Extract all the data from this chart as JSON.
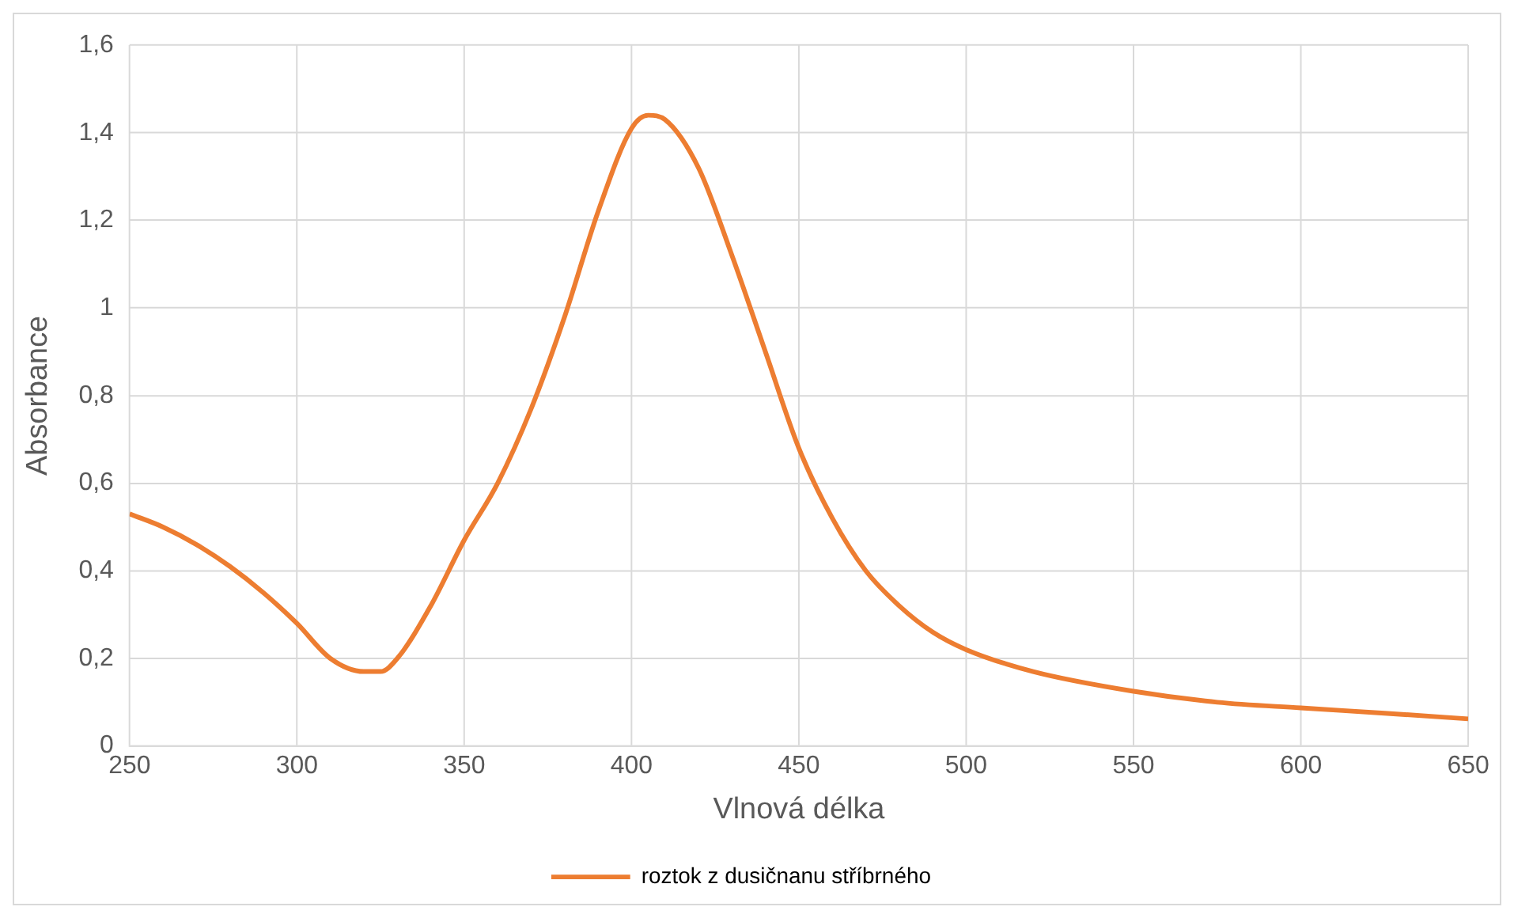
{
  "chart_data": {
    "type": "line",
    "xlabel": "Vlnová délka",
    "ylabel": "Absorbance",
    "x": [
      250,
      260,
      270,
      280,
      290,
      300,
      310,
      320,
      325,
      330,
      340,
      350,
      360,
      370,
      380,
      390,
      400,
      405,
      410,
      420,
      430,
      440,
      450,
      460,
      470,
      480,
      490,
      500,
      520,
      550,
      575,
      600,
      625,
      650
    ],
    "series": [
      {
        "name": "roztok z dusičnanu stříbrného",
        "color": "#ed7d31",
        "values": [
          0.53,
          0.5,
          0.46,
          0.41,
          0.35,
          0.28,
          0.2,
          0.17,
          0.17,
          0.2,
          0.32,
          0.47,
          0.6,
          0.77,
          0.98,
          1.22,
          1.41,
          1.44,
          1.43,
          1.32,
          1.12,
          0.9,
          0.68,
          0.52,
          0.4,
          0.32,
          0.26,
          0.22,
          0.17,
          0.125,
          0.1,
          0.087,
          0.075,
          0.062
        ]
      }
    ],
    "xlim": [
      250,
      650
    ],
    "xticks": [
      250,
      300,
      350,
      400,
      450,
      500,
      550,
      600,
      650
    ],
    "ylim": [
      0,
      1.6
    ],
    "yticks": [
      0,
      {
        "value": 0.2,
        "label": "0,2"
      },
      {
        "value": 0.4,
        "label": "0,4"
      },
      {
        "value": 0.6,
        "label": "0,6"
      },
      {
        "value": 0.8,
        "label": "0,8"
      },
      1,
      {
        "value": 1.2,
        "label": "1,2"
      },
      {
        "value": 1.4,
        "label": "1,4"
      },
      {
        "value": 1.6,
        "label": "1,6"
      }
    ],
    "grid": true,
    "legend": "bottom",
    "marker": "none",
    "line_style": "solid"
  }
}
